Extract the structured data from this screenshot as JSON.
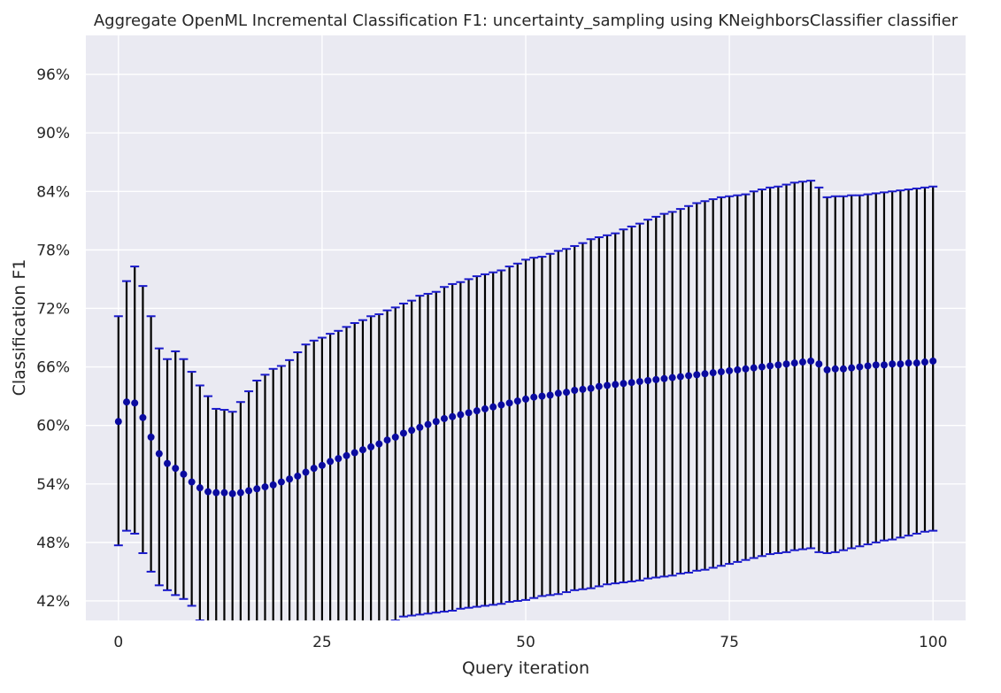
{
  "chart_data": {
    "type": "scatter",
    "title": "Aggregate OpenML Incremental Classification F1: uncertainty_sampling using KNeighborsClassifier classifier",
    "xlabel": "Query iteration",
    "ylabel": "Classification F1",
    "xlim": [
      -4,
      104
    ],
    "ylim": [
      0.4,
      1.0
    ],
    "xticks": [
      0,
      25,
      50,
      75,
      100
    ],
    "xtick_labels": [
      "0",
      "25",
      "50",
      "75",
      "100"
    ],
    "yticks": [
      0.42,
      0.48,
      0.54,
      0.6,
      0.66,
      0.72,
      0.78,
      0.84,
      0.9,
      0.96
    ],
    "ytick_labels": [
      "42%",
      "48%",
      "54%",
      "60%",
      "66%",
      "72%",
      "78%",
      "84%",
      "90%",
      "96%"
    ],
    "grid": true,
    "colors": {
      "background": "#eaeaf2",
      "grid": "#ffffff",
      "marker": "#0a0aa0",
      "errorbar": "#000000",
      "cap": "#1a1acc"
    },
    "series": [
      {
        "x": [
          0,
          1,
          2,
          3,
          4,
          5,
          6,
          7,
          8,
          9,
          10,
          11,
          12,
          13,
          14,
          15,
          16,
          17,
          18,
          19,
          20,
          21,
          22,
          23,
          24,
          25,
          26,
          27,
          28,
          29,
          30,
          31,
          32,
          33,
          34,
          35,
          36,
          37,
          38,
          39,
          40,
          41,
          42,
          43,
          44,
          45,
          46,
          47,
          48,
          49,
          50,
          51,
          52,
          53,
          54,
          55,
          56,
          57,
          58,
          59,
          60,
          61,
          62,
          63,
          64,
          65,
          66,
          67,
          68,
          69,
          70,
          71,
          72,
          73,
          74,
          75,
          76,
          77,
          78,
          79,
          80,
          81,
          82,
          83,
          84,
          85,
          86,
          87,
          88,
          89,
          90,
          91,
          92,
          93,
          94,
          95,
          96,
          97,
          98,
          99,
          100
        ],
        "mean": [
          0.604,
          0.624,
          0.623,
          0.608,
          0.588,
          0.571,
          0.561,
          0.556,
          0.55,
          0.542,
          0.536,
          0.532,
          0.531,
          0.531,
          0.53,
          0.531,
          0.533,
          0.535,
          0.537,
          0.539,
          0.542,
          0.545,
          0.548,
          0.552,
          0.556,
          0.559,
          0.563,
          0.566,
          0.569,
          0.572,
          0.575,
          0.578,
          0.581,
          0.585,
          0.588,
          0.592,
          0.595,
          0.598,
          0.601,
          0.604,
          0.607,
          0.609,
          0.611,
          0.613,
          0.615,
          0.617,
          0.619,
          0.621,
          0.623,
          0.625,
          0.627,
          0.629,
          0.63,
          0.631,
          0.633,
          0.634,
          0.636,
          0.637,
          0.638,
          0.64,
          0.641,
          0.642,
          0.643,
          0.644,
          0.645,
          0.646,
          0.647,
          0.648,
          0.649,
          0.65,
          0.651,
          0.652,
          0.653,
          0.654,
          0.655,
          0.656,
          0.657,
          0.658,
          0.659,
          0.66,
          0.661,
          0.662,
          0.663,
          0.664,
          0.665,
          0.666,
          0.663,
          0.657,
          0.658,
          0.658,
          0.659,
          0.66,
          0.661,
          0.662,
          0.662,
          0.663,
          0.663,
          0.664,
          0.664,
          0.665,
          0.666
        ],
        "upper": [
          0.712,
          0.748,
          0.763,
          0.743,
          0.712,
          0.679,
          0.668,
          0.676,
          0.668,
          0.655,
          0.641,
          0.63,
          0.617,
          0.616,
          0.614,
          0.624,
          0.635,
          0.646,
          0.652,
          0.658,
          0.661,
          0.667,
          0.675,
          0.683,
          0.687,
          0.69,
          0.694,
          0.697,
          0.701,
          0.705,
          0.708,
          0.712,
          0.714,
          0.718,
          0.721,
          0.725,
          0.728,
          0.733,
          0.735,
          0.737,
          0.742,
          0.745,
          0.747,
          0.75,
          0.753,
          0.755,
          0.757,
          0.759,
          0.763,
          0.766,
          0.77,
          0.772,
          0.773,
          0.776,
          0.779,
          0.781,
          0.784,
          0.787,
          0.791,
          0.793,
          0.795,
          0.797,
          0.801,
          0.804,
          0.807,
          0.811,
          0.814,
          0.817,
          0.819,
          0.822,
          0.825,
          0.828,
          0.83,
          0.832,
          0.834,
          0.835,
          0.836,
          0.837,
          0.84,
          0.842,
          0.844,
          0.845,
          0.847,
          0.849,
          0.85,
          0.851,
          0.844,
          0.834,
          0.835,
          0.835,
          0.836,
          0.836,
          0.837,
          0.838,
          0.839,
          0.84,
          0.841,
          0.842,
          0.843,
          0.844,
          0.845
        ],
        "lower": [
          0.477,
          0.492,
          0.489,
          0.469,
          0.45,
          0.436,
          0.431,
          0.426,
          0.422,
          0.415,
          0.4,
          0.398,
          0.397,
          0.397,
          0.396,
          0.396,
          0.395,
          0.394,
          0.394,
          0.393,
          0.393,
          0.393,
          0.393,
          0.393,
          0.393,
          0.393,
          0.393,
          0.393,
          0.393,
          0.393,
          0.393,
          0.394,
          0.394,
          0.396,
          0.4,
          0.404,
          0.405,
          0.406,
          0.407,
          0.408,
          0.409,
          0.41,
          0.412,
          0.413,
          0.414,
          0.415,
          0.416,
          0.417,
          0.419,
          0.42,
          0.421,
          0.423,
          0.425,
          0.426,
          0.427,
          0.429,
          0.431,
          0.432,
          0.433,
          0.435,
          0.437,
          0.438,
          0.439,
          0.44,
          0.441,
          0.443,
          0.444,
          0.445,
          0.446,
          0.448,
          0.449,
          0.451,
          0.452,
          0.454,
          0.456,
          0.458,
          0.46,
          0.462,
          0.464,
          0.466,
          0.468,
          0.469,
          0.47,
          0.472,
          0.473,
          0.474,
          0.47,
          0.469,
          0.47,
          0.472,
          0.474,
          0.476,
          0.478,
          0.48,
          0.482,
          0.483,
          0.485,
          0.487,
          0.489,
          0.491,
          0.492
        ]
      }
    ]
  }
}
